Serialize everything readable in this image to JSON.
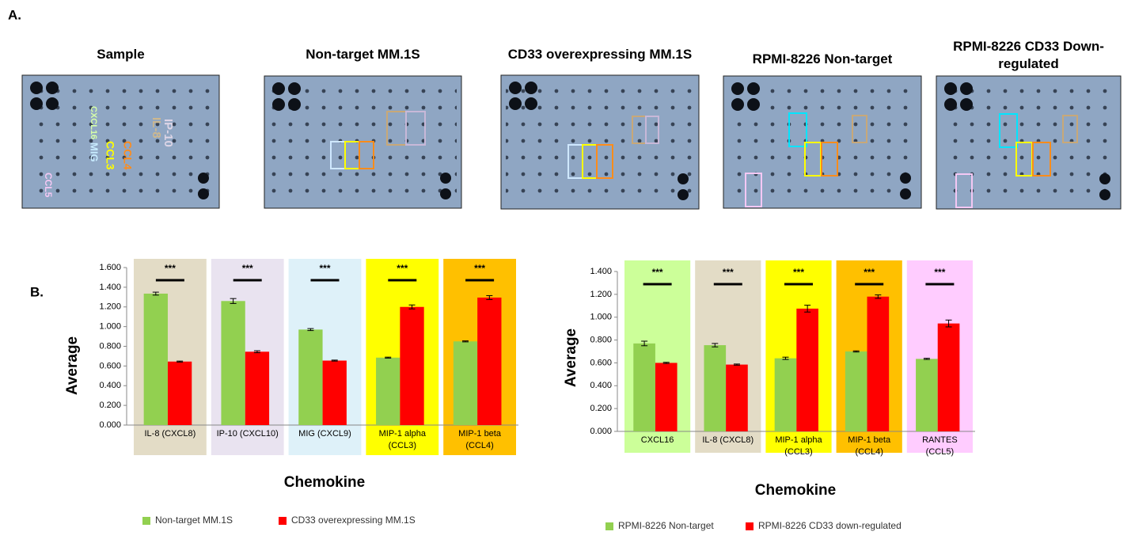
{
  "panel_labels": {
    "a": "A.",
    "b": "B."
  },
  "blots": [
    {
      "title": "Sample"
    },
    {
      "title": "Non-target MM.1S"
    },
    {
      "title": "CD33 overexpressing MM.1S"
    },
    {
      "title": "RPMI-8226 Non-target"
    },
    {
      "title": "RPMI-8226 CD33 Down-regulated"
    }
  ],
  "sample_labels": [
    {
      "text": "IP-10",
      "color": "#ddd5e6"
    },
    {
      "text": "IL-8",
      "color": "#cdb88f"
    },
    {
      "text": "CXCL16",
      "color": "#d6ffa8"
    },
    {
      "text": "MIG",
      "color": "#c8ecff"
    },
    {
      "text": "CCL3",
      "color": "#ffff00"
    },
    {
      "text": "CCL4",
      "color": "#ff8c1a"
    },
    {
      "text": "CCL5",
      "color": "#f4c8f4"
    }
  ],
  "chart_data": [
    {
      "type": "bar",
      "x_label": "Chemokine",
      "y_label": "Average",
      "categories": [
        "IL-8 (CXCL8)",
        "IP-10 (CXCL10)",
        "MIG (CXCL9)",
        "MIP-1 alpha (CCL3)",
        "MIP-1 beta (CCL4)"
      ],
      "category_colors": [
        "#e3dcc6",
        "#e9e3f0",
        "#def1f9",
        "#ffff00",
        "#ffc000"
      ],
      "annotations": [
        "***",
        "***",
        "***",
        "***",
        "***"
      ],
      "series": [
        {
          "name": "Non-target MM.1S",
          "color": "#92d050",
          "values": [
            1.335,
            1.26,
            0.97,
            0.685,
            0.85
          ],
          "errors": [
            0.015,
            0.025,
            0.01,
            0.005,
            0.005
          ]
        },
        {
          "name": "CD33 overexpressing MM.1S",
          "color": "#ff0000",
          "values": [
            0.645,
            0.745,
            0.655,
            1.2,
            1.295
          ],
          "errors": [
            0.005,
            0.01,
            0.005,
            0.02,
            0.02
          ]
        }
      ],
      "ylim": [
        0,
        1.6
      ],
      "yticks": [
        {
          "value": 0,
          "label": "0.000"
        },
        {
          "value": 0.2,
          "label": "0.200"
        },
        {
          "value": 0.4,
          "label": "0.400"
        },
        {
          "value": 0.6,
          "label": "0.600"
        },
        {
          "value": 0.8,
          "label": "0.800"
        },
        {
          "value": 1.0,
          "label": "1.000"
        },
        {
          "value": 1.2,
          "label": "1.200"
        },
        {
          "value": 1.4,
          "label": "1.400"
        },
        {
          "value": 1.6,
          "label": "1.600"
        }
      ]
    },
    {
      "type": "bar",
      "x_label": "Chemokine",
      "y_label": "Average",
      "categories": [
        "CXCL16",
        "IL-8 (CXCL8)",
        "MIP-1 alpha (CCL3)",
        "MIP-1 beta (CCL4)",
        "RANTES (CCL5)"
      ],
      "category_colors": [
        "#ccff99",
        "#e3dcc6",
        "#ffff00",
        "#ffc000",
        "#ffccff"
      ],
      "annotations": [
        "***",
        "***",
        "***",
        "***",
        "***"
      ],
      "series": [
        {
          "name": "RPMI-8226 Non-target",
          "color": "#92d050",
          "values": [
            0.77,
            0.755,
            0.64,
            0.7,
            0.635
          ],
          "errors": [
            0.02,
            0.015,
            0.01,
            0.005,
            0.005
          ]
        },
        {
          "name": "RPMI-8226 CD33 down-regulated",
          "color": "#ff0000",
          "values": [
            0.6,
            0.585,
            1.075,
            1.18,
            0.945
          ],
          "errors": [
            0.005,
            0.005,
            0.03,
            0.015,
            0.03
          ]
        }
      ],
      "ylim": [
        0,
        1.4
      ],
      "yticks": [
        {
          "value": 0,
          "label": "0.000"
        },
        {
          "value": 0.2,
          "label": "0.200"
        },
        {
          "value": 0.4,
          "label": "0.400"
        },
        {
          "value": 0.6,
          "label": "0.600"
        },
        {
          "value": 0.8,
          "label": "0.800"
        },
        {
          "value": 1.0,
          "label": "1.000"
        },
        {
          "value": 1.2,
          "label": "1.200"
        },
        {
          "value": 1.4,
          "label": "1.400"
        }
      ]
    }
  ]
}
